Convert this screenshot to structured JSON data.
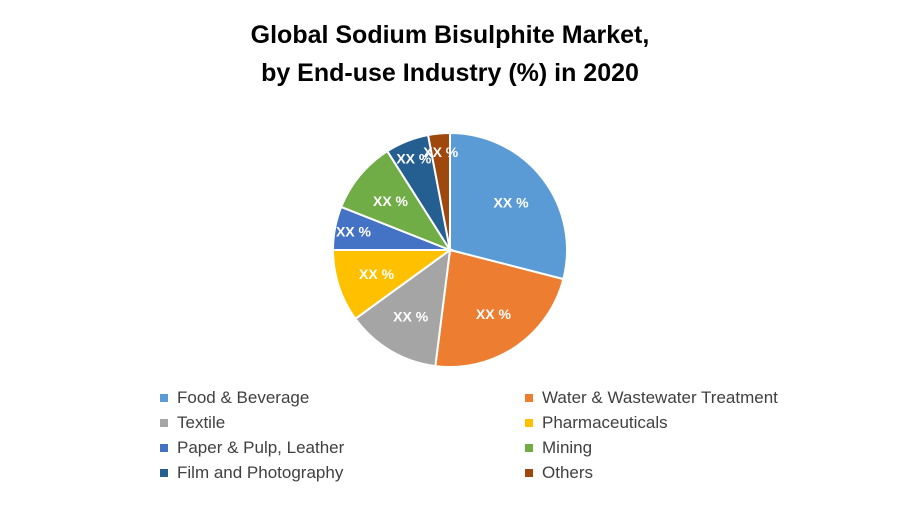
{
  "chart_data": {
    "type": "pie",
    "title_line1": "Global Sodium Bisulphite Market,",
    "title_line2": "by End-use Industry (%) in 2020",
    "slices": [
      {
        "label": "Food & Beverage",
        "value": 29,
        "data_label": "XX %",
        "color": "#5B9BD5"
      },
      {
        "label": "Water & Wastewater Treatment",
        "value": 23,
        "data_label": "XX %",
        "color": "#ED7D31"
      },
      {
        "label": "Textile",
        "value": 13,
        "data_label": "XX %",
        "color": "#A5A5A5"
      },
      {
        "label": "Pharmaceuticals",
        "value": 10,
        "data_label": "XX %",
        "color": "#FFC000"
      },
      {
        "label": "Paper & Pulp, Leather",
        "value": 6,
        "data_label": "XX %",
        "color": "#4472C4"
      },
      {
        "label": "Mining",
        "value": 10,
        "data_label": "XX %",
        "color": "#70AD47"
      },
      {
        "label": "Film and Photography",
        "value": 6,
        "data_label": "XX %",
        "color": "#255E91"
      },
      {
        "label": "Others",
        "value": 3,
        "data_label": "XX %",
        "color": "#9E480E"
      }
    ],
    "start_angle": "12 o'clock",
    "direction": "clockwise",
    "legend_position": "bottom"
  }
}
